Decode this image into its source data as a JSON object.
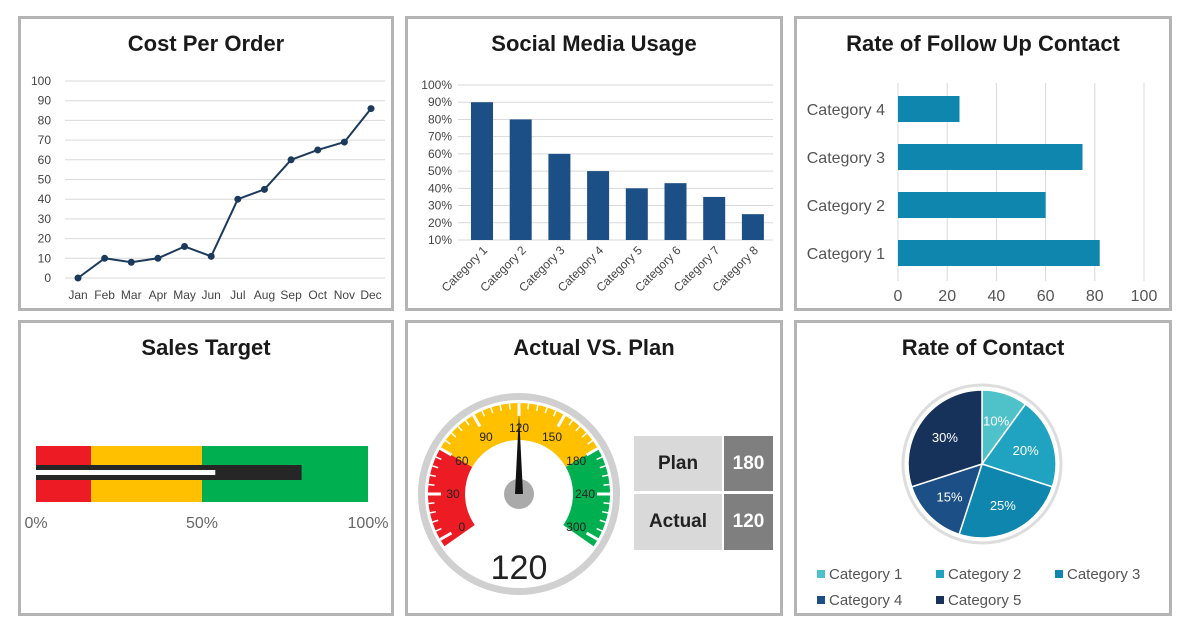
{
  "colors": {
    "line": "#1b3a5c",
    "bar": "#1c4f86",
    "hbar": "#0e86ad",
    "red": "#ed1c24",
    "yellow": "#ffc000",
    "green": "#00b050"
  },
  "chart_data": [
    {
      "type": "line",
      "title": "Cost Per Order",
      "categories": [
        "Jan",
        "Feb",
        "Mar",
        "Apr",
        "May",
        "Jun",
        "Jul",
        "Aug",
        "Sep",
        "Oct",
        "Nov",
        "Dec"
      ],
      "values": [
        0,
        10,
        8,
        10,
        16,
        11,
        40,
        45,
        60,
        65,
        69,
        86
      ],
      "ylim": [
        0,
        100
      ],
      "yticks": [
        "0",
        "10",
        "20",
        "30",
        "40",
        "50",
        "60",
        "70",
        "80",
        "90",
        "100"
      ],
      "grid": true
    },
    {
      "type": "bar",
      "title": "Social Media Usage",
      "categories": [
        "Category 1",
        "Category 2",
        "Category 3",
        "Category 4",
        "Category 5",
        "Category 6",
        "Category 7",
        "Category 8"
      ],
      "values": [
        90,
        80,
        60,
        50,
        40,
        43,
        35,
        25
      ],
      "ylim": [
        10,
        100
      ],
      "yticks": [
        "10%",
        "20%",
        "30%",
        "40%",
        "50%",
        "60%",
        "70%",
        "80%",
        "90%",
        "100%"
      ],
      "grid": true
    },
    {
      "type": "bar",
      "orientation": "horizontal",
      "title": "Rate of Follow Up Contact",
      "categories": [
        "Category 1",
        "Category 2",
        "Category 3",
        "Category 4"
      ],
      "values": [
        82,
        60,
        75,
        25
      ],
      "xlim": [
        0,
        100
      ],
      "xticks": [
        "0",
        "20",
        "40",
        "60",
        "80",
        "100"
      ],
      "grid": true
    },
    {
      "type": "pie",
      "title": "Rate of Contact",
      "categories": [
        "Category 1",
        "Category 2",
        "Category 3",
        "Category 4",
        "Category 5"
      ],
      "values": [
        10,
        20,
        25,
        15,
        30
      ],
      "labels": [
        "10%",
        "20%",
        "25%",
        "15%",
        "30%"
      ],
      "colors": [
        "#4fc1c9",
        "#1fa3c0",
        "#0e86ad",
        "#1c4f86",
        "#17325a"
      ],
      "legend": "bottom"
    }
  ],
  "sales_target": {
    "title": "Sales Target",
    "bands": [
      16.6,
      50,
      100
    ],
    "actual": 80,
    "target": 54,
    "ticks": [
      "0%",
      "50%",
      "100%"
    ]
  },
  "gauge": {
    "title": "Actual VS. Plan",
    "value": 120,
    "value_label": "120",
    "ticks": [
      "0",
      "30",
      "60",
      "90",
      "120",
      "150",
      "180",
      "240",
      "300"
    ],
    "plan_label": "Plan",
    "plan_value": "180",
    "actual_label": "Actual",
    "actual_value": "120"
  }
}
